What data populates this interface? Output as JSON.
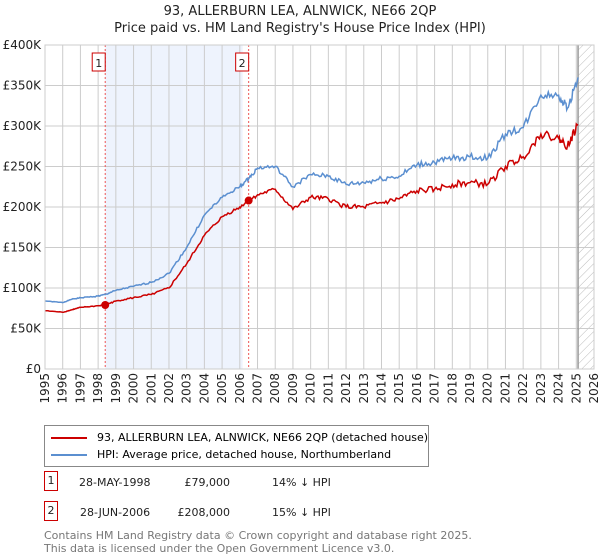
{
  "title": "93, ALLERBURN LEA, ALNWICK, NE66 2QP",
  "subtitle": "Price paid vs. HM Land Registry's House Price Index (HPI)",
  "chart_data": {
    "type": "line",
    "ylim": [
      0,
      400000
    ],
    "xlim": [
      1995,
      2026
    ],
    "yticks": [
      {
        "v": 0,
        "label": "£0"
      },
      {
        "v": 50000,
        "label": "£50K"
      },
      {
        "v": 100000,
        "label": "£100K"
      },
      {
        "v": 150000,
        "label": "£150K"
      },
      {
        "v": 200000,
        "label": "£200K"
      },
      {
        "v": 250000,
        "label": "£250K"
      },
      {
        "v": 300000,
        "label": "£300K"
      },
      {
        "v": 350000,
        "label": "£350K"
      },
      {
        "v": 400000,
        "label": "£400K"
      }
    ],
    "xticks": [
      "1995",
      "1996",
      "1997",
      "1998",
      "1999",
      "2000",
      "2001",
      "2002",
      "2003",
      "2004",
      "2005",
      "2006",
      "2007",
      "2008",
      "2009",
      "2010",
      "2011",
      "2012",
      "2013",
      "2014",
      "2015",
      "2016",
      "2017",
      "2018",
      "2019",
      "2020",
      "2021",
      "2022",
      "2023",
      "2024",
      "2025",
      "2026"
    ],
    "series": [
      {
        "name": "93, ALLERBURN LEA, ALNWICK, NE66 2QP (detached house)",
        "color": "#cc0000",
        "x": [
          1995,
          1996,
          1996.5,
          1997,
          1998,
          1998.4,
          1999,
          2000,
          2001,
          2002,
          2003,
          2004,
          2005,
          2006,
          2006.5,
          2007,
          2008,
          2009,
          2010,
          2011,
          2012,
          2013,
          2014,
          2015,
          2016,
          2017,
          2018,
          2019,
          2020,
          2021,
          2022,
          2023,
          2024,
          2024.5,
          2025.1
        ],
        "y": [
          72000,
          70000,
          73000,
          76000,
          78000,
          79000,
          84000,
          88000,
          92000,
          100000,
          130000,
          165000,
          188000,
          200000,
          208000,
          215000,
          222000,
          197000,
          212000,
          210000,
          200000,
          200000,
          205000,
          210000,
          220000,
          222000,
          228000,
          230000,
          228000,
          250000,
          262000,
          290000,
          285000,
          275000,
          302000
        ]
      },
      {
        "name": "HPI: Average price, detached house, Northumberland",
        "color": "#5b8fd0",
        "x": [
          1995,
          1996,
          1996.5,
          1997,
          1998,
          1998.4,
          1999,
          2000,
          2001,
          2002,
          2003,
          2004,
          2005,
          2006,
          2006.5,
          2007,
          2008,
          2009,
          2010,
          2011,
          2012,
          2013,
          2014,
          2015,
          2016,
          2017,
          2018,
          2019,
          2020,
          2021,
          2022,
          2023,
          2024,
          2024.5,
          2025.1
        ],
        "y": [
          84000,
          82000,
          86000,
          88000,
          90000,
          92000,
          97000,
          102000,
          107000,
          118000,
          150000,
          190000,
          212000,
          225000,
          235000,
          248000,
          250000,
          225000,
          240000,
          238000,
          228000,
          230000,
          235000,
          238000,
          252000,
          255000,
          260000,
          262000,
          260000,
          290000,
          298000,
          338000,
          338000,
          322000,
          360000
        ]
      }
    ],
    "sales": [
      {
        "num": "1",
        "x": 1998.4,
        "y": 79000
      },
      {
        "num": "2",
        "x": 2006.5,
        "y": 208000
      }
    ],
    "shade": [
      1998.4,
      2006.5
    ],
    "hatch_from": 2025.1
  },
  "legend": {
    "red": "93, ALLERBURN LEA, ALNWICK, NE66 2QP (detached house)",
    "blue": "HPI: Average price, detached house, Northumberland"
  },
  "table": [
    {
      "num": "1",
      "date": "28-MAY-1998",
      "price": "£79,000",
      "hpi": "14% ↓ HPI"
    },
    {
      "num": "2",
      "date": "28-JUN-2006",
      "price": "£208,000",
      "hpi": "15% ↓ HPI"
    }
  ],
  "footer": [
    "Contains HM Land Registry data © Crown copyright and database right 2025.",
    "This data is licensed under the Open Government Licence v3.0."
  ]
}
